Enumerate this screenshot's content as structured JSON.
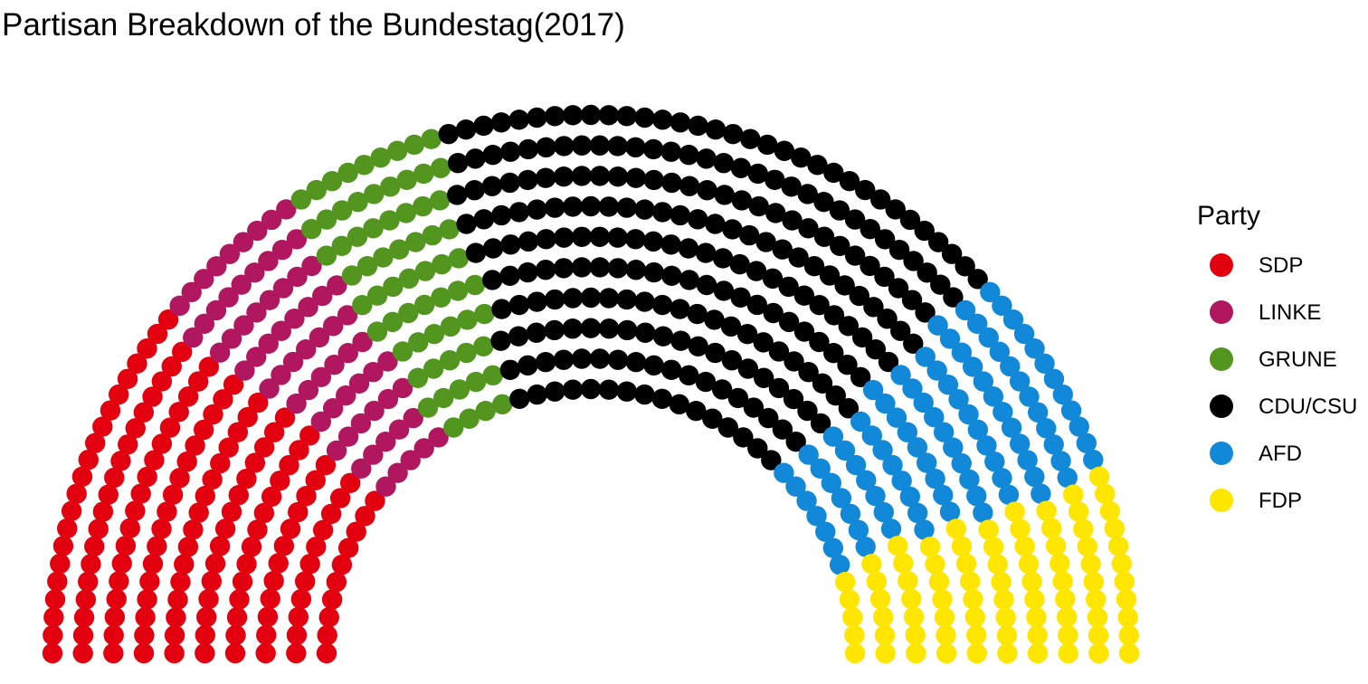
{
  "chart_data": {
    "type": "parliament",
    "title": "Partisan Breakdown of the Bundestag(2017)",
    "legend_title": "Party",
    "legend_position": "right",
    "series": [
      {
        "name": "SDP",
        "color": "#E3000F",
        "seats": 153
      },
      {
        "name": "LINKE",
        "color": "#B1175F",
        "seats": 69
      },
      {
        "name": "GRUNE",
        "color": "#52951F",
        "seats": 67
      },
      {
        "name": "CDU/CSU",
        "color": "#000000",
        "seats": 246
      },
      {
        "name": "AFD",
        "color": "#1188D8",
        "seats": 94
      },
      {
        "name": "FDP",
        "color": "#FFE600",
        "seats": 80
      }
    ]
  }
}
